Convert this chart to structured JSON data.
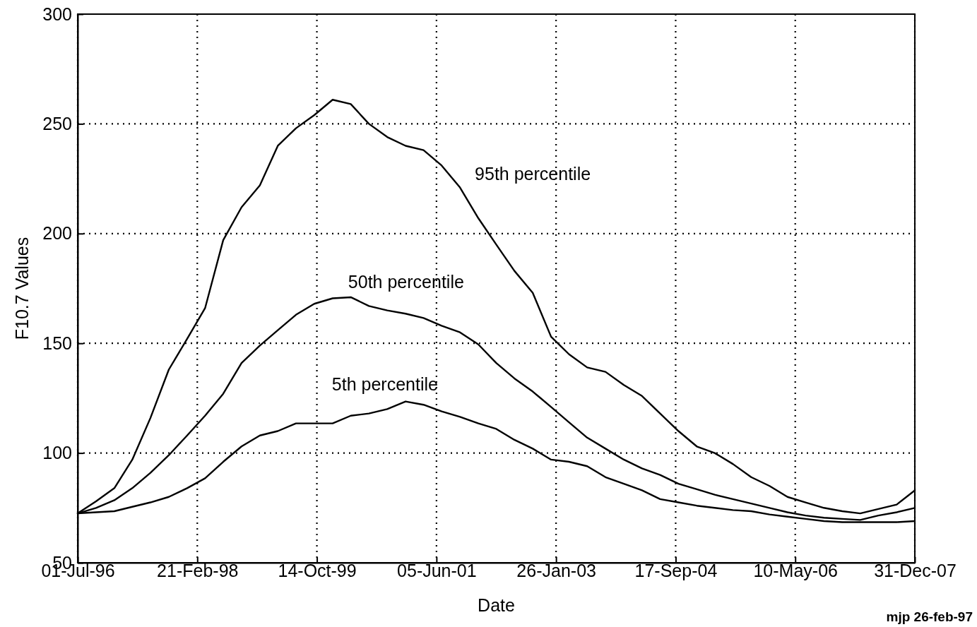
{
  "chart_data": {
    "type": "line",
    "xlabel": "Date",
    "ylabel": "F10.7 Values",
    "x": [
      "1996-07-01",
      "1996-10-01",
      "1997-01-01",
      "1997-04-01",
      "1997-07-01",
      "1997-10-01",
      "1998-01-01",
      "1998-04-01",
      "1998-07-01",
      "1998-10-01",
      "1999-01-01",
      "1999-04-01",
      "1999-07-01",
      "1999-10-01",
      "2000-01-01",
      "2000-04-01",
      "2000-07-01",
      "2000-10-01",
      "2001-01-01",
      "2001-04-01",
      "2001-07-01",
      "2001-10-01",
      "2002-01-01",
      "2002-04-01",
      "2002-07-01",
      "2002-10-01",
      "2003-01-01",
      "2003-04-01",
      "2003-07-01",
      "2003-10-01",
      "2004-01-01",
      "2004-04-01",
      "2004-07-01",
      "2004-10-01",
      "2005-01-01",
      "2005-04-01",
      "2005-07-01",
      "2005-10-01",
      "2006-01-01",
      "2006-04-01",
      "2006-07-01",
      "2006-10-01",
      "2007-01-01",
      "2007-04-01",
      "2007-07-01",
      "2007-10-01",
      "2007-12-31"
    ],
    "series": [
      {
        "name": "95th percentile",
        "color": "#000000",
        "values": [
          72.5,
          78,
          84,
          97,
          116,
          138,
          152,
          166,
          197,
          212,
          222,
          240,
          248,
          254,
          261,
          259,
          250,
          244,
          240,
          238,
          231,
          221,
          207,
          195,
          183,
          173,
          153,
          145,
          139,
          137,
          131,
          126,
          118,
          110,
          103,
          100,
          95,
          89,
          85,
          80,
          77.5,
          75,
          73.5,
          72.5,
          74.5,
          76.5,
          83
        ]
      },
      {
        "name": "50th percentile",
        "color": "#000000",
        "values": [
          72.5,
          75,
          78.5,
          84,
          91,
          99,
          108,
          117,
          127,
          141,
          149,
          156,
          163,
          168,
          170.5,
          171,
          167,
          165,
          163.5,
          161.5,
          158,
          155,
          149.5,
          141,
          134,
          128,
          121,
          114,
          107,
          102,
          97,
          93,
          90,
          86,
          83.5,
          81,
          79,
          77,
          75,
          73,
          71.5,
          70.5,
          70,
          69.5,
          71.5,
          73,
          75
        ]
      },
      {
        "name": "5th percentile",
        "color": "#000000",
        "values": [
          72.5,
          73,
          73.5,
          75.5,
          77.5,
          80,
          84,
          88.5,
          96,
          103,
          108,
          110,
          113.5,
          113.5,
          113.5,
          117,
          118,
          120,
          123.5,
          122,
          119,
          116.5,
          113.5,
          111,
          106,
          102,
          97,
          96,
          94,
          89,
          86,
          83,
          79,
          77.5,
          76,
          75,
          74,
          73.5,
          72,
          71,
          70,
          69,
          68.5,
          68.5,
          68.5,
          68.5,
          69
        ]
      }
    ],
    "xlim": [
      "1996-07-01",
      "2007-12-31"
    ],
    "xticks": [
      {
        "value": "1996-07-01",
        "label": "01-Jul-96"
      },
      {
        "value": "1998-02-21",
        "label": "21-Feb-98"
      },
      {
        "value": "1999-10-14",
        "label": "14-Oct-99"
      },
      {
        "value": "2001-06-05",
        "label": "05-Jun-01"
      },
      {
        "value": "2003-01-26",
        "label": "26-Jan-03"
      },
      {
        "value": "2004-09-17",
        "label": "17-Sep-04"
      },
      {
        "value": "2006-05-10",
        "label": "10-May-06"
      },
      {
        "value": "2007-12-31",
        "label": "31-Dec-07"
      }
    ],
    "ylim": [
      50,
      300
    ],
    "yticks": [
      50,
      100,
      150,
      200,
      250,
      300
    ],
    "grid": true,
    "line_style": "solid",
    "marker": "none",
    "annotations": [
      "mjp 26-feb-97"
    ]
  }
}
